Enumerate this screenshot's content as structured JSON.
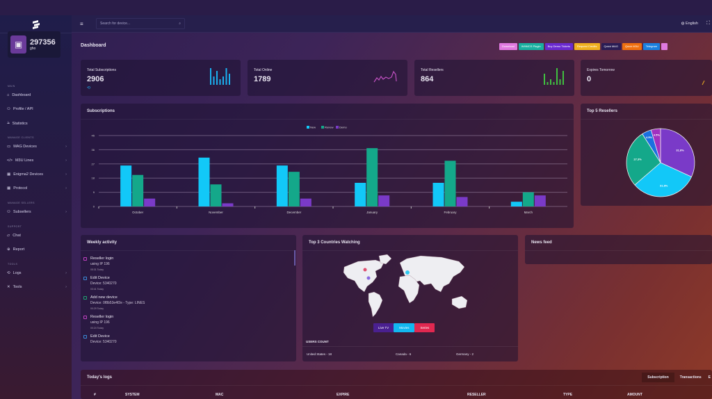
{
  "sidebar": {
    "balance": "297356",
    "user": "gho",
    "sections": {
      "main": "MAIN",
      "clients": "MANAGE CLIENTS",
      "sellers": "MANAGE SELLERS",
      "support": "SUPPORT",
      "tools": "TOOLS"
    },
    "items": [
      {
        "label": "Dashboard"
      },
      {
        "label": "Profile / API"
      },
      {
        "label": "Statistics"
      },
      {
        "label": "MAG Devices"
      },
      {
        "label": "M3U Lines"
      },
      {
        "label": "Enigma2 Devices"
      },
      {
        "label": "Protocol"
      },
      {
        "label": "Subsellers"
      },
      {
        "label": "Chat"
      },
      {
        "label": "Report"
      },
      {
        "label": "Logs"
      },
      {
        "label": "Tools"
      }
    ]
  },
  "topbar": {
    "search_placeholder": "Search for device...",
    "language": "English"
  },
  "page_title": "Dashboard",
  "quick_buttons": [
    {
      "label": "Download",
      "color": "#e07ae0"
    },
    {
      "label": "WHMCS Plugin",
      "color": "#1ab0a0"
    },
    {
      "label": "Buy Demo Tickets",
      "color": "#6a2ad0"
    },
    {
      "label": "Request Credits",
      "color": "#f0b020"
    },
    {
      "label": "Quick MAG",
      "color": "#2a1d55"
    },
    {
      "label": "Quick M3U",
      "color": "#f07010"
    },
    {
      "label": "Telegram",
      "color": "#1a80e0"
    }
  ],
  "stats": [
    {
      "label": "Total Subscriptions",
      "value": "2906",
      "color": "#1ab0f0"
    },
    {
      "label": "Total Online",
      "value": "1789",
      "color": "#c050c0"
    },
    {
      "label": "Total Resellers",
      "value": "864",
      "color": "#40c040"
    },
    {
      "label": "Expires Tomorrow",
      "value": "0",
      "color": "#f0b020"
    }
  ],
  "subscriptions": {
    "title": "Subscriptions"
  },
  "chart_data": [
    {
      "type": "bar",
      "categories": [
        "October",
        "November",
        "December",
        "January",
        "February",
        "March"
      ],
      "series": [
        {
          "name": "New",
          "values": [
            26,
            31,
            26,
            15,
            15,
            3
          ],
          "color": "#12c8f8"
        },
        {
          "name": "Renew",
          "values": [
            20,
            14,
            22,
            37,
            29,
            9
          ],
          "color": "#14a88a"
        },
        {
          "name": "Demo",
          "values": [
            5,
            2,
            5,
            7,
            6,
            7
          ],
          "color": "#7a3ac8"
        }
      ],
      "ylim": [
        0,
        45
      ],
      "yticks": [
        0,
        9,
        18,
        27,
        36,
        45
      ],
      "grid": true,
      "legend": "top"
    },
    {
      "type": "pie",
      "title": "Top 5 Resellers",
      "values": [
        31.8,
        31.8,
        27.3,
        4.5,
        4.5
      ],
      "labels": [
        "31.8%",
        "31.8%",
        "27.3%",
        "4.5%",
        "4.5%"
      ],
      "colors": [
        "#7a3ac8",
        "#12c8f8",
        "#14a88a",
        "#1a70e0",
        "#a030c0"
      ]
    }
  ],
  "weekly": {
    "title": "Weekly activity",
    "items": [
      {
        "title": "Reseller login",
        "detail": "using IP 196",
        "time": "05:31 Today",
        "color": "#c040c0"
      },
      {
        "title": "Edit Device",
        "detail": "Device: 5340270",
        "time": "03:41 Today",
        "color": "#3a8ad8"
      },
      {
        "title": "Add new device",
        "detail": "Device: 0f8b53e4f2e - Type: LINES",
        "time": "00:29 Today",
        "color": "#20a070"
      },
      {
        "title": "Reseller login",
        "detail": "using IP 196",
        "time": "00:24 Today",
        "color": "#c040c0"
      },
      {
        "title": "Edit Device",
        "detail": "Device: 5340270",
        "time": "",
        "color": "#3a8ad8"
      }
    ]
  },
  "countries": {
    "title": "Top 3 Countries Watching",
    "tabs": [
      "Live TV",
      "Movies",
      "Series"
    ],
    "users_count": "USERS COUNT",
    "list": [
      "United States - 18",
      "Canada - 6",
      "Germany - 2"
    ]
  },
  "news": {
    "title": "News feed"
  },
  "logs": {
    "title": "Today's logs",
    "tabs": [
      "Subscription",
      "Transactions",
      "E"
    ],
    "columns": [
      "#",
      "SYSTEM",
      "MAC",
      "EXPIRE",
      "RESELLER",
      "TYPE",
      "AMOUNT"
    ]
  }
}
